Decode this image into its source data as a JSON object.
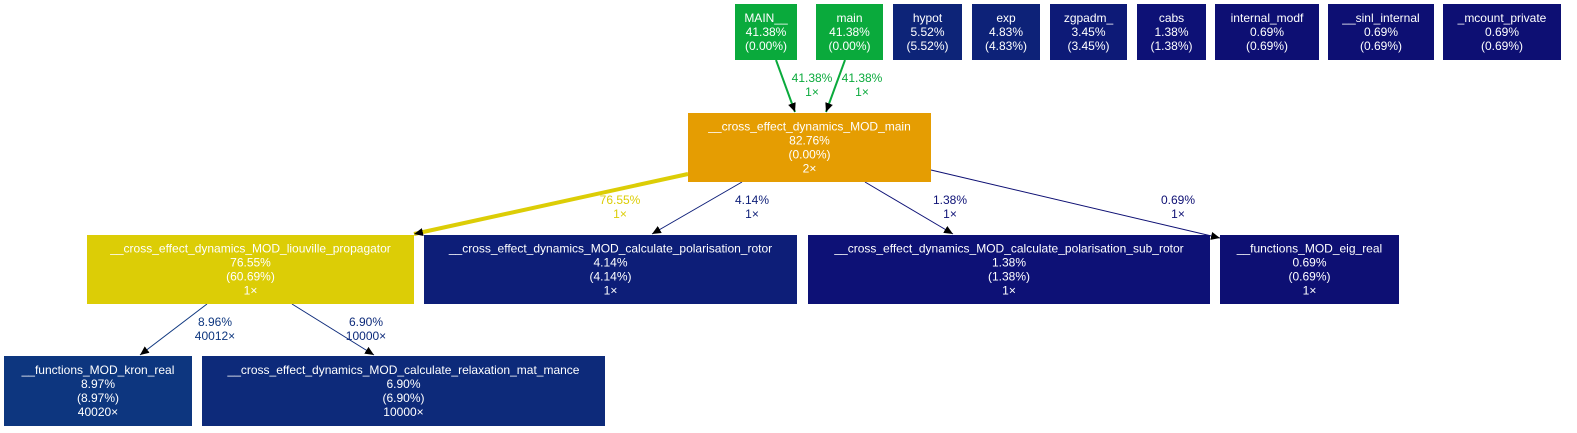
{
  "nodes": [
    {
      "id": "MAIN__",
      "name": "MAIN__",
      "total": "41.38%",
      "self": "(0.00%)",
      "calls": "",
      "color": "#0aaa3c"
    },
    {
      "id": "main",
      "name": "main",
      "total": "41.38%",
      "self": "(0.00%)",
      "calls": "",
      "color": "#0aaa3c"
    },
    {
      "id": "hypot",
      "name": "hypot",
      "total": "5.52%",
      "self": "(5.52%)",
      "calls": "",
      "color": "#0d2478"
    },
    {
      "id": "exp",
      "name": "exp",
      "total": "4.83%",
      "self": "(4.83%)",
      "calls": "",
      "color": "#0d2278"
    },
    {
      "id": "zgpadm",
      "name": "zgpadm_",
      "total": "3.45%",
      "self": "(3.45%)",
      "calls": "",
      "color": "#0d1a77"
    },
    {
      "id": "cabs",
      "name": "cabs",
      "total": "1.38%",
      "self": "(1.38%)",
      "calls": "",
      "color": "#0d1176"
    },
    {
      "id": "internal_modf",
      "name": "internal_modf",
      "total": "0.69%",
      "self": "(0.69%)",
      "calls": "",
      "color": "#0d0f73"
    },
    {
      "id": "sinl_internal",
      "name": "__sinl_internal",
      "total": "0.69%",
      "self": "(0.69%)",
      "calls": "",
      "color": "#0d0f73"
    },
    {
      "id": "mcount_private",
      "name": "_mcount_private",
      "total": "0.69%",
      "self": "(0.69%)",
      "calls": "",
      "color": "#0d0f73"
    },
    {
      "id": "cross_main",
      "name": "__cross_effect_dynamics_MOD_main",
      "total": "82.76%",
      "self": "(0.00%)",
      "calls": "2×",
      "color": "#e59d02"
    },
    {
      "id": "liouville",
      "name": "__cross_effect_dynamics_MOD_liouville_propagator",
      "total": "76.55%",
      "self": "(60.69%)",
      "calls": "1×",
      "color": "#dccd06"
    },
    {
      "id": "pol_rotor",
      "name": "__cross_effect_dynamics_MOD_calculate_polarisation_rotor",
      "total": "4.14%",
      "self": "(4.14%)",
      "calls": "1×",
      "color": "#0d1e78"
    },
    {
      "id": "pol_sub_rotor",
      "name": "__cross_effect_dynamics_MOD_calculate_polarisation_sub_rotor",
      "total": "1.38%",
      "self": "(1.38%)",
      "calls": "1×",
      "color": "#0d1176"
    },
    {
      "id": "eig_real",
      "name": "__functions_MOD_eig_real",
      "total": "0.69%",
      "self": "(0.69%)",
      "calls": "1×",
      "color": "#0d0f73"
    },
    {
      "id": "kron_real",
      "name": "__functions_MOD_kron_real",
      "total": "8.97%",
      "self": "(8.97%)",
      "calls": "40020×",
      "color": "#0d367f"
    },
    {
      "id": "relax_mat",
      "name": "__cross_effect_dynamics_MOD_calculate_relaxation_mat_mance",
      "total": "6.90%",
      "self": "(6.90%)",
      "calls": "10000×",
      "color": "#0d2a7a"
    }
  ],
  "edges": [
    {
      "from": "MAIN__",
      "to": "cross_main",
      "percent": "41.38%",
      "calls": "1×",
      "color": "#0aaa3c"
    },
    {
      "from": "main",
      "to": "cross_main",
      "percent": "41.38%",
      "calls": "1×",
      "color": "#0aaa3c"
    },
    {
      "from": "cross_main",
      "to": "liouville",
      "percent": "76.55%",
      "calls": "1×",
      "color": "#dccd06"
    },
    {
      "from": "cross_main",
      "to": "pol_rotor",
      "percent": "4.14%",
      "calls": "1×",
      "color": "#0d1e78"
    },
    {
      "from": "cross_main",
      "to": "pol_sub_rotor",
      "percent": "1.38%",
      "calls": "1×",
      "color": "#0d1176"
    },
    {
      "from": "cross_main",
      "to": "eig_real",
      "percent": "0.69%",
      "calls": "1×",
      "color": "#0d0f73"
    },
    {
      "from": "liouville",
      "to": "kron_real",
      "percent": "8.96%",
      "calls": "40012×",
      "color": "#0d367f"
    },
    {
      "from": "liouville",
      "to": "relax_mat",
      "percent": "6.90%",
      "calls": "10000×",
      "color": "#0d2a7a"
    }
  ]
}
